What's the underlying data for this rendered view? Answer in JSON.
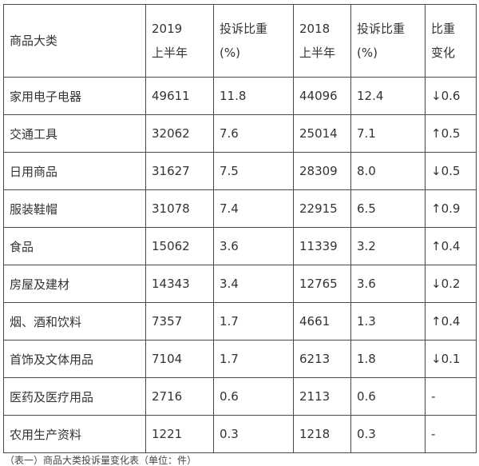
{
  "table": {
    "headers": {
      "category": [
        "商品大类"
      ],
      "count_2019": [
        "2019",
        "上半年"
      ],
      "pct_2019": [
        "投诉比重",
        "(%)"
      ],
      "count_2018": [
        "2018",
        "上半年"
      ],
      "pct_2018": [
        "投诉比重",
        "(%)"
      ],
      "change": [
        "比重",
        "变化"
      ]
    },
    "rows": [
      {
        "category": "家用电子电器",
        "count_2019": "49611",
        "pct_2019": "11.8",
        "count_2018": "44096",
        "pct_2018": "12.4",
        "change": "↓0.6"
      },
      {
        "category": "交通工具",
        "count_2019": "32062",
        "pct_2019": "7.6",
        "count_2018": "25014",
        "pct_2018": "7.1",
        "change": "↑0.5"
      },
      {
        "category": "日用商品",
        "count_2019": "31627",
        "pct_2019": "7.5",
        "count_2018": "28309",
        "pct_2018": "8.0",
        "change": "↓0.5"
      },
      {
        "category": "服装鞋帽",
        "count_2019": "31078",
        "pct_2019": "7.4",
        "count_2018": "22915",
        "pct_2018": "6.5",
        "change": "↑0.9"
      },
      {
        "category": "食品",
        "count_2019": "15062",
        "pct_2019": "3.6",
        "count_2018": "11339",
        "pct_2018": "3.2",
        "change": "↑0.4"
      },
      {
        "category": "房屋及建材",
        "count_2019": "14343",
        "pct_2019": "3.4",
        "count_2018": "12765",
        "pct_2018": "3.6",
        "change": "↓0.2"
      },
      {
        "category": "烟、酒和饮料",
        "count_2019": "7357",
        "pct_2019": "1.7",
        "count_2018": "4661",
        "pct_2018": "1.3",
        "change": "↑0.4"
      },
      {
        "category": "首饰及文体用品",
        "count_2019": "7104",
        "pct_2019": "1.7",
        "count_2018": "6213",
        "pct_2018": "1.8",
        "change": "↓0.1"
      },
      {
        "category": "医药及医疗用品",
        "count_2019": "2716",
        "pct_2019": "0.6",
        "count_2018": "2113",
        "pct_2018": "0.6",
        "change": "-"
      },
      {
        "category": "农用生产资料",
        "count_2019": "1221",
        "pct_2019": "0.3",
        "count_2018": "1218",
        "pct_2018": "0.3",
        "change": "-"
      }
    ]
  },
  "footnote": "（表一）商品大类投诉量变化表（单位：件）"
}
